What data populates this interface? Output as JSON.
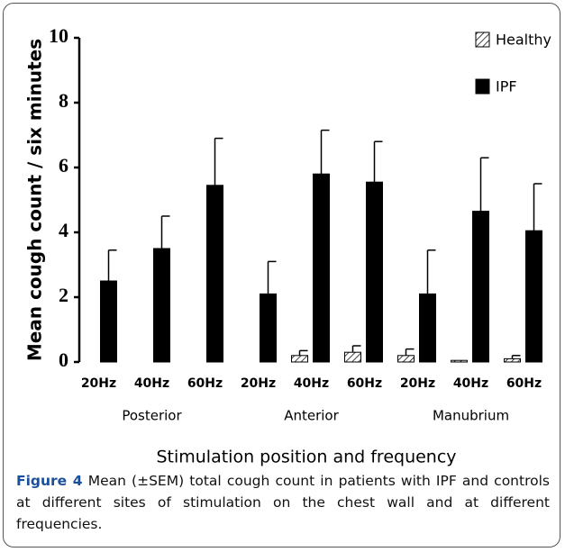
{
  "chart_data": {
    "type": "bar",
    "ylabel": "Mean cough count / six minutes",
    "xlabel": "Stimulation position and frequency",
    "categories": [
      "20Hz",
      "40Hz",
      "60Hz",
      "20Hz",
      "40Hz",
      "60Hz",
      "20Hz",
      "40Hz",
      "60Hz"
    ],
    "groups": [
      {
        "label": "Posterior",
        "span": [
          0,
          2
        ]
      },
      {
        "label": "Anterior",
        "span": [
          3,
          5
        ]
      },
      {
        "label": "Manubrium",
        "span": [
          6,
          8
        ]
      }
    ],
    "series": [
      {
        "name": "Healthy",
        "color": "#ffffff",
        "pattern": "hatch",
        "values": [
          0,
          0,
          0,
          0,
          0.2,
          0.3,
          0.2,
          0.05,
          0.1
        ],
        "errors": [
          0,
          0,
          0,
          0,
          0.15,
          0.2,
          0.2,
          0,
          0.1
        ]
      },
      {
        "name": "IPF",
        "color": "#000000",
        "values": [
          2.5,
          3.5,
          5.45,
          2.1,
          5.8,
          5.55,
          2.1,
          4.65,
          4.05
        ],
        "errors": [
          0.95,
          1.0,
          1.45,
          1.0,
          1.35,
          1.25,
          1.35,
          1.65,
          1.45
        ]
      }
    ],
    "ylim": [
      0,
      10
    ],
    "yticks": [
      0,
      2,
      4,
      6,
      8,
      10
    ],
    "grid": false,
    "legend": "upper right"
  },
  "caption": {
    "label": "Figure 4",
    "text": "Mean (±SEM) total cough count in patients with IPF and controls at different sites of stimulation on the chest wall and at different frequencies."
  }
}
